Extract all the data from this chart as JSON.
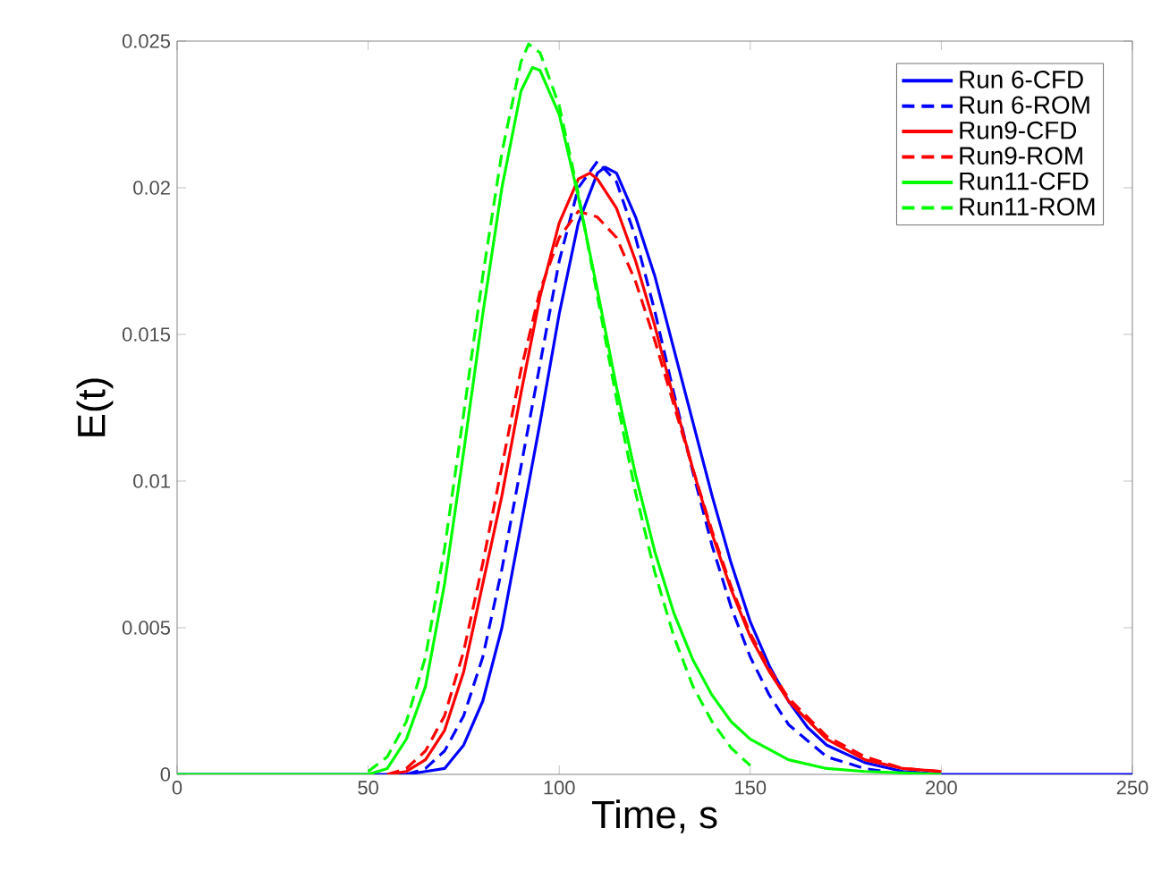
{
  "chart_data": {
    "type": "line",
    "xlabel": "Time, s",
    "ylabel": "E(t)",
    "xlim": [
      0,
      250
    ],
    "ylim": [
      0,
      0.025
    ],
    "xticks": [
      0,
      50,
      100,
      150,
      200,
      250
    ],
    "yticks": [
      0,
      0.005,
      0.01,
      0.015,
      0.02,
      0.025
    ],
    "grid": false,
    "legend": "top right",
    "marker": "none",
    "series": [
      {
        "name": "Run 6-CFD",
        "color": "#0000ff",
        "line_style": "solid",
        "x": [
          0,
          60,
          65,
          70,
          75,
          80,
          85,
          90,
          95,
          100,
          105,
          110,
          112,
          115,
          120,
          125,
          130,
          135,
          140,
          145,
          150,
          155,
          160,
          165,
          170,
          180,
          190,
          200,
          250
        ],
        "values": [
          0,
          0,
          0.0001,
          0.0002,
          0.001,
          0.0025,
          0.005,
          0.0085,
          0.012,
          0.0157,
          0.0188,
          0.0205,
          0.0207,
          0.0205,
          0.019,
          0.017,
          0.0145,
          0.012,
          0.0095,
          0.0072,
          0.0052,
          0.0037,
          0.0025,
          0.0016,
          0.001,
          0.0004,
          0.0001,
          0,
          0
        ]
      },
      {
        "name": "Run 6-ROM",
        "color": "#0000ff",
        "line_style": "dashed",
        "x": [
          60,
          65,
          70,
          75,
          80,
          85,
          90,
          95,
          100,
          105,
          110,
          115,
          120,
          125,
          130,
          135,
          140,
          145,
          150,
          155,
          160,
          170,
          180,
          185
        ],
        "values": [
          0,
          0.0002,
          0.0008,
          0.002,
          0.004,
          0.007,
          0.0105,
          0.014,
          0.0175,
          0.02,
          0.0209,
          0.0202,
          0.0183,
          0.0158,
          0.013,
          0.0103,
          0.0078,
          0.0057,
          0.004,
          0.0027,
          0.0017,
          0.0006,
          0.0002,
          0.0001
        ]
      },
      {
        "name": "Run9-CFD",
        "color": "#ff0000",
        "line_style": "solid",
        "x": [
          55,
          60,
          65,
          70,
          75,
          80,
          85,
          90,
          95,
          100,
          105,
          108,
          110,
          115,
          120,
          125,
          130,
          135,
          140,
          145,
          150,
          155,
          160,
          170,
          180,
          190,
          200
        ],
        "values": [
          0,
          0.0001,
          0.0005,
          0.0015,
          0.0035,
          0.0065,
          0.0095,
          0.013,
          0.0163,
          0.0188,
          0.0203,
          0.0205,
          0.0203,
          0.0193,
          0.0175,
          0.0153,
          0.0128,
          0.0104,
          0.0082,
          0.0063,
          0.0047,
          0.0035,
          0.0025,
          0.0012,
          0.0005,
          0.0002,
          0.0001
        ]
      },
      {
        "name": "Run9-ROM",
        "color": "#ff0000",
        "line_style": "dashed",
        "x": [
          55,
          60,
          65,
          70,
          75,
          80,
          85,
          90,
          95,
          100,
          105,
          110,
          115,
          120,
          125,
          130,
          135,
          140,
          145,
          150,
          155,
          160,
          170,
          180,
          190,
          200
        ],
        "values": [
          0,
          0.0002,
          0.0008,
          0.002,
          0.0042,
          0.0072,
          0.0105,
          0.0138,
          0.0165,
          0.0183,
          0.0192,
          0.019,
          0.0183,
          0.0168,
          0.0148,
          0.0126,
          0.0104,
          0.0083,
          0.0064,
          0.0048,
          0.0036,
          0.0026,
          0.0013,
          0.0006,
          0.0002,
          0.0001
        ]
      },
      {
        "name": "Run11-CFD",
        "color": "#00ff00",
        "line_style": "solid",
        "x": [
          0,
          50,
          55,
          60,
          65,
          70,
          75,
          80,
          85,
          90,
          93,
          95,
          100,
          105,
          110,
          115,
          120,
          125,
          130,
          135,
          140,
          145,
          150,
          160,
          170,
          180,
          200
        ],
        "values": [
          0,
          0,
          0.0002,
          0.0012,
          0.003,
          0.0065,
          0.011,
          0.0157,
          0.02,
          0.0233,
          0.0241,
          0.024,
          0.0225,
          0.0197,
          0.0165,
          0.0132,
          0.0102,
          0.0076,
          0.0055,
          0.0039,
          0.0027,
          0.0018,
          0.0012,
          0.0005,
          0.0002,
          0.0001,
          0
        ]
      },
      {
        "name": "Run11-ROM",
        "color": "#00ff00",
        "line_style": "dashed",
        "x": [
          50,
          55,
          60,
          65,
          70,
          75,
          80,
          85,
          90,
          92,
          95,
          100,
          105,
          110,
          115,
          120,
          125,
          130,
          135,
          140,
          145,
          150
        ],
        "values": [
          0.0001,
          0.0006,
          0.0018,
          0.004,
          0.0077,
          0.0123,
          0.017,
          0.0212,
          0.0243,
          0.0249,
          0.0246,
          0.0228,
          0.0198,
          0.0163,
          0.0128,
          0.0096,
          0.0069,
          0.0047,
          0.003,
          0.0018,
          0.0009,
          0.0003
        ]
      }
    ]
  }
}
